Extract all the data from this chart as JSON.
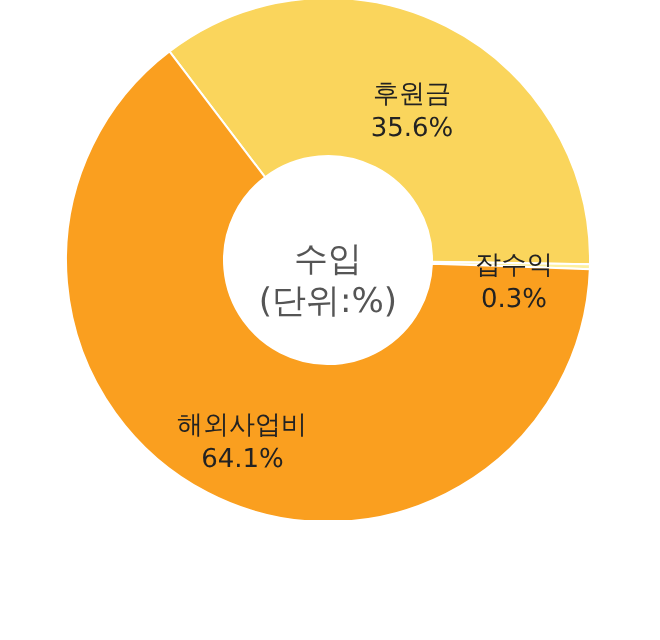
{
  "chart_data": {
    "type": "donut",
    "title": "수입",
    "subtitle": "(단위:%)",
    "categories": [
      "후원금",
      "잡수익",
      "해외사업비"
    ],
    "values": [
      35.6,
      0.3,
      64.1
    ],
    "value_labels": [
      "35.6%",
      "0.3%",
      "64.1%"
    ],
    "colors": [
      "#fad55c",
      "#fdf0a0",
      "#fa9f1f"
    ]
  }
}
